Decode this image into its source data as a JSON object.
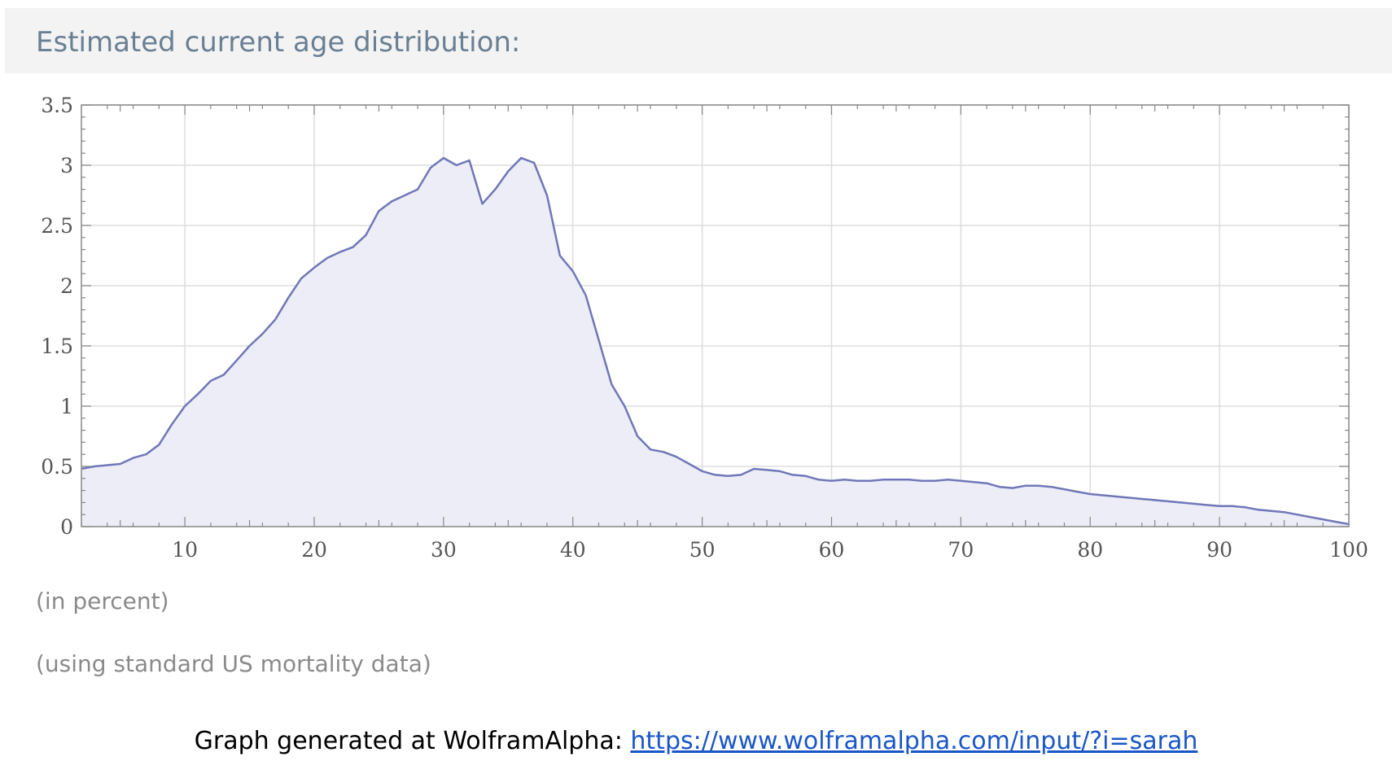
{
  "header": {
    "title": "Estimated current age distribution:"
  },
  "notes": {
    "units": "(in percent)",
    "source": "(using standard US mortality data)"
  },
  "credit": {
    "text": "Graph generated at WolframAlpha: ",
    "link": "https://www.wolframalpha.com/input/?i=sarah"
  },
  "colors": {
    "line": "#7077b8",
    "fill": "#ecedf6",
    "grid": "#dddddd",
    "frame": "#888888"
  },
  "chart_data": {
    "type": "area",
    "title": "Estimated current age distribution:",
    "xlabel": "",
    "ylabel": "",
    "xlim": [
      2,
      100
    ],
    "ylim": [
      0,
      3.5
    ],
    "xticks": [
      10,
      20,
      30,
      40,
      50,
      60,
      70,
      80,
      90,
      100
    ],
    "yticks": [
      0,
      0.5,
      1,
      1.5,
      2,
      2.5,
      3,
      3.5
    ],
    "xtick_labels": [
      "10",
      "20",
      "30",
      "40",
      "50",
      "60",
      "70",
      "80",
      "90",
      "100"
    ],
    "ytick_labels": [
      "0",
      "0.5",
      "1",
      "1.5",
      "2",
      "2.5",
      "3",
      "3.5"
    ],
    "grid": true,
    "x": [
      2,
      3,
      4,
      5,
      6,
      7,
      8,
      9,
      10,
      11,
      12,
      13,
      14,
      15,
      16,
      17,
      18,
      19,
      20,
      21,
      22,
      23,
      24,
      25,
      26,
      27,
      28,
      29,
      30,
      31,
      32,
      33,
      34,
      35,
      36,
      37,
      38,
      39,
      40,
      41,
      42,
      43,
      44,
      45,
      46,
      47,
      48,
      49,
      50,
      51,
      52,
      53,
      54,
      55,
      56,
      57,
      58,
      59,
      60,
      61,
      62,
      63,
      64,
      65,
      66,
      67,
      68,
      69,
      70,
      71,
      72,
      73,
      74,
      75,
      76,
      77,
      78,
      79,
      80,
      81,
      82,
      83,
      84,
      85,
      86,
      87,
      88,
      89,
      90,
      91,
      92,
      93,
      94,
      95,
      96,
      97,
      98,
      99,
      100
    ],
    "y": [
      0.48,
      0.5,
      0.51,
      0.52,
      0.57,
      0.6,
      0.68,
      0.85,
      1.0,
      1.1,
      1.21,
      1.26,
      1.38,
      1.5,
      1.6,
      1.72,
      1.9,
      2.06,
      2.15,
      2.23,
      2.28,
      2.32,
      2.42,
      2.62,
      2.7,
      2.75,
      2.8,
      2.98,
      3.06,
      3.0,
      3.04,
      2.68,
      2.8,
      2.95,
      3.06,
      3.02,
      2.75,
      2.25,
      2.12,
      1.92,
      1.55,
      1.18,
      1.0,
      0.75,
      0.64,
      0.62,
      0.58,
      0.52,
      0.46,
      0.43,
      0.42,
      0.43,
      0.48,
      0.47,
      0.46,
      0.43,
      0.42,
      0.39,
      0.38,
      0.39,
      0.38,
      0.38,
      0.39,
      0.39,
      0.39,
      0.38,
      0.38,
      0.39,
      0.38,
      0.37,
      0.36,
      0.33,
      0.32,
      0.34,
      0.34,
      0.33,
      0.31,
      0.29,
      0.27,
      0.26,
      0.25,
      0.24,
      0.23,
      0.22,
      0.21,
      0.2,
      0.19,
      0.18,
      0.17,
      0.17,
      0.16,
      0.14,
      0.13,
      0.12,
      0.1,
      0.08,
      0.06,
      0.04,
      0.02
    ]
  }
}
